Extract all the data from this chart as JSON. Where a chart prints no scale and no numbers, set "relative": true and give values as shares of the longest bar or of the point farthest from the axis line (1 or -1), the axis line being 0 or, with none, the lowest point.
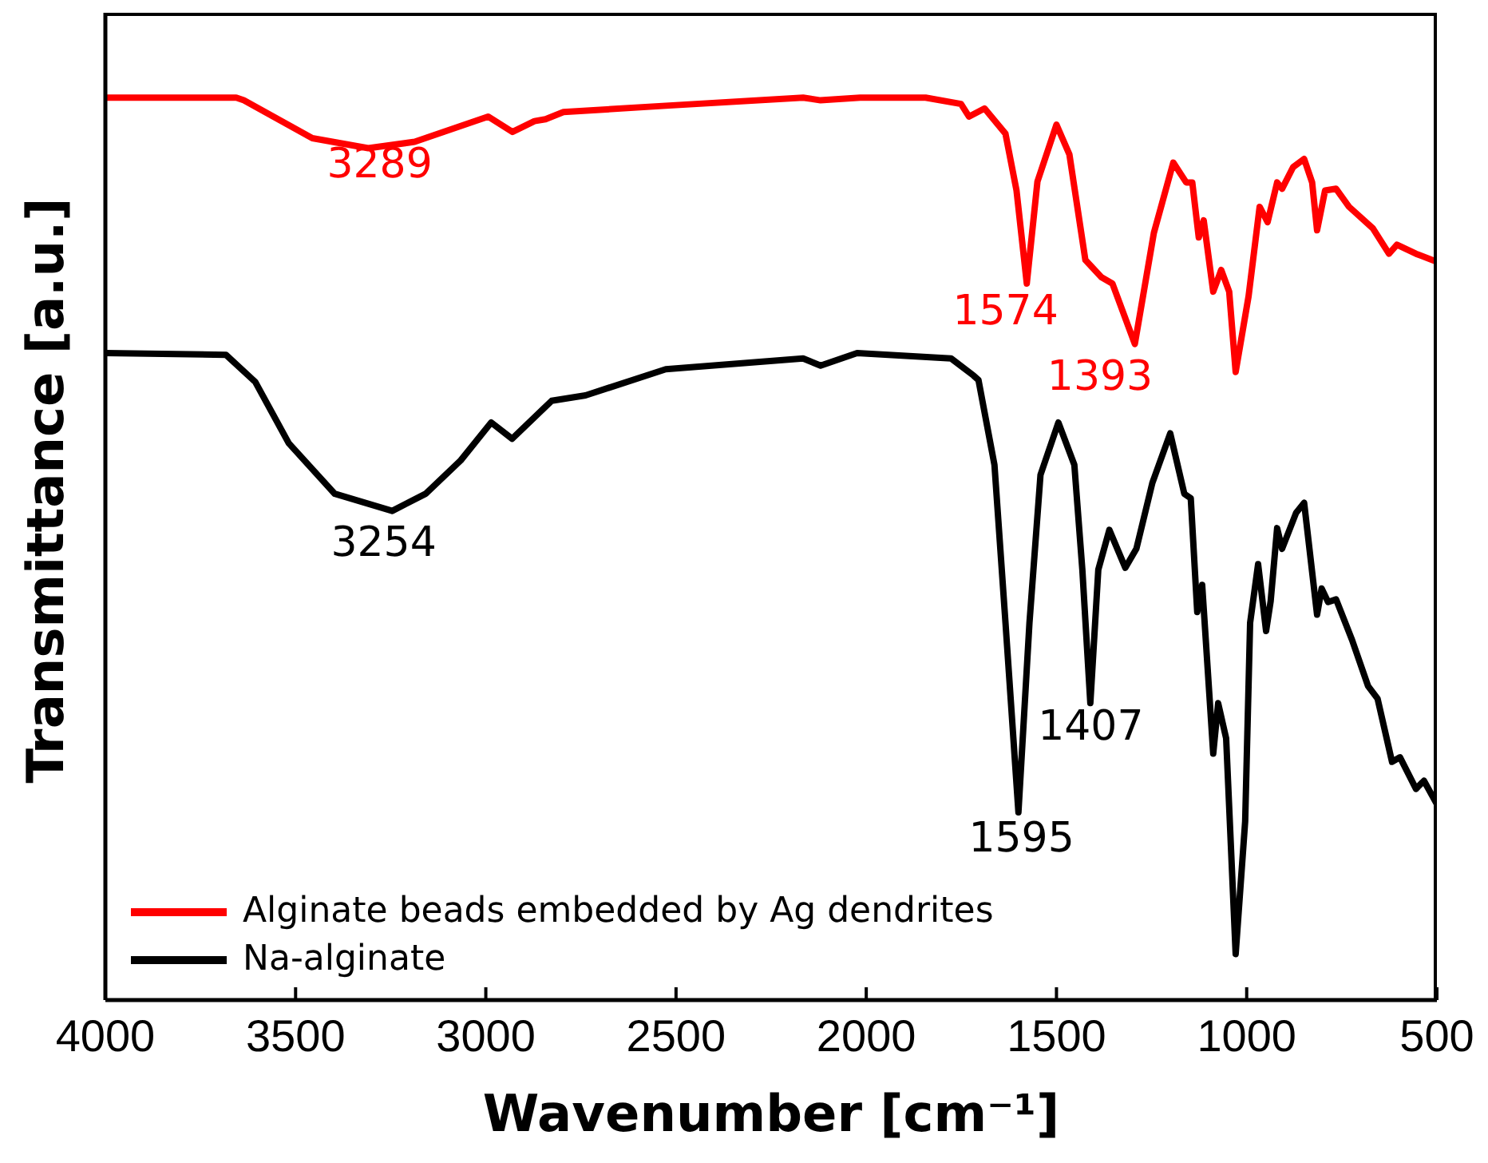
{
  "chart_data": {
    "type": "line",
    "xlabel": "Wavenumber [cm⁻¹]",
    "ylabel": "Transmittance [a.u.]",
    "relative": true,
    "xlim": [
      4000,
      500
    ],
    "xticks": [
      4000,
      3500,
      3000,
      2500,
      2000,
      1500,
      1000,
      500
    ],
    "legend": "bottom left",
    "grid": false,
    "marker": "none",
    "line_style": "solid",
    "series": [
      {
        "name": "Alginate beads embedded by Ag dendrites",
        "color": "#ff0000",
        "x": [
          4000,
          3656,
          3636,
          3456,
          3309,
          3187,
          2994,
          2930,
          2872,
          2843,
          2796,
          2527,
          2166,
          2120,
          2016,
          1844,
          1751,
          1730,
          1689,
          1634,
          1605,
          1578,
          1550,
          1500,
          1466,
          1424,
          1382,
          1353,
          1294,
          1244,
          1193,
          1159,
          1143,
          1126,
          1113,
          1088,
          1067,
          1046,
          1029,
          995,
          966,
          945,
          920,
          907,
          878,
          849,
          828,
          815,
          794,
          765,
          731,
          668,
          626,
          605,
          555,
          500
        ],
        "values": [
          1.0,
          1.0,
          0.997,
          0.955,
          0.944,
          0.951,
          0.979,
          0.962,
          0.974,
          0.976,
          0.984,
          0.991,
          1.0,
          0.997,
          1.0,
          1.0,
          0.993,
          0.979,
          0.988,
          0.96,
          0.897,
          0.794,
          0.907,
          0.97,
          0.937,
          0.82,
          0.801,
          0.794,
          0.727,
          0.85,
          0.928,
          0.906,
          0.906,
          0.845,
          0.864,
          0.785,
          0.809,
          0.785,
          0.696,
          0.78,
          0.879,
          0.862,
          0.906,
          0.899,
          0.923,
          0.932,
          0.906,
          0.853,
          0.897,
          0.899,
          0.879,
          0.855,
          0.827,
          0.837,
          0.827,
          0.818
        ]
      },
      {
        "name": "Na-alginate",
        "color": "#000000",
        "x": [
          4000,
          3683,
          3606,
          3518,
          3397,
          3246,
          3158,
          3066,
          2986,
          2931,
          2827,
          2738,
          2527,
          2166,
          2120,
          2024,
          1777,
          1718,
          1705,
          1663,
          1634,
          1600,
          1571,
          1542,
          1495,
          1453,
          1432,
          1411,
          1390,
          1361,
          1319,
          1290,
          1248,
          1201,
          1164,
          1147,
          1130,
          1117,
          1088,
          1075,
          1054,
          1029,
          1004,
          991,
          970,
          949,
          937,
          920,
          907,
          870,
          849,
          815,
          803,
          786,
          765,
          723,
          681,
          656,
          618,
          597,
          555,
          534,
          500
        ],
        "values": [
          0.717,
          0.715,
          0.685,
          0.617,
          0.561,
          0.542,
          0.561,
          0.598,
          0.64,
          0.622,
          0.664,
          0.67,
          0.699,
          0.711,
          0.703,
          0.717,
          0.711,
          0.692,
          0.687,
          0.593,
          0.418,
          0.208,
          0.418,
          0.582,
          0.64,
          0.593,
          0.477,
          0.329,
          0.477,
          0.521,
          0.479,
          0.5,
          0.573,
          0.628,
          0.561,
          0.556,
          0.43,
          0.46,
          0.273,
          0.329,
          0.29,
          0.051,
          0.198,
          0.418,
          0.483,
          0.409,
          0.442,
          0.523,
          0.5,
          0.54,
          0.551,
          0.427,
          0.456,
          0.441,
          0.444,
          0.399,
          0.348,
          0.334,
          0.264,
          0.269,
          0.234,
          0.243,
          0.217
        ]
      }
    ],
    "annotations": [
      "3289",
      "1574",
      "1393",
      "3254",
      "1407",
      "1595"
    ]
  }
}
